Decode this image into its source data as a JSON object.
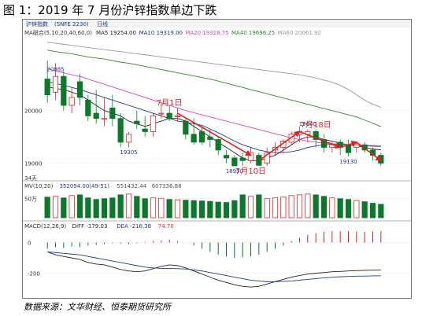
{
  "title": "图 1：2019 年 7 月份沪锌指数单边下跌",
  "source": "数据来源：文华财经、恒泰期货研究所",
  "chart_data": {
    "type": "candlestick",
    "tabs": [
      "沪锌指数",
      "(SNFE 2230)",
      "日线"
    ],
    "colors": {
      "up": "#e02020",
      "down": "#0a7a2a",
      "bg": "#ffffff",
      "ann": "#e02020",
      "ma_label": "#1f3b8a"
    },
    "price_panel": {
      "ylim": [
        18800,
        21400
      ],
      "yticks": [
        19000,
        20000
      ],
      "ma_legend": [
        {
          "label": "MA磁合(5,10,20,40,60,0)",
          "color": "#333333"
        },
        {
          "label": "MA5 19254.00",
          "color": "#222222"
        },
        {
          "label": "MA10 19319.00",
          "color": "#1f3b8a"
        },
        {
          "label": "MA20 19328.75",
          "color": "#e040c0"
        },
        {
          "label": "MA40 19696.25",
          "color": "#2e8b2e"
        },
        {
          "label": "MA60 20061.92",
          "color": "#999999"
        }
      ],
      "candles": [
        {
          "o": 20600,
          "h": 20950,
          "c": 20300,
          "l": 20150
        },
        {
          "o": 20350,
          "h": 20900,
          "c": 20650,
          "l": 20200
        },
        {
          "o": 20650,
          "h": 20750,
          "c": 20100,
          "l": 20000
        },
        {
          "o": 20100,
          "h": 20450,
          "c": 20250,
          "l": 19950
        },
        {
          "o": 20550,
          "h": 20700,
          "c": 20250,
          "l": 20100
        },
        {
          "o": 20200,
          "h": 20300,
          "c": 19900,
          "l": 19800
        },
        {
          "o": 19950,
          "h": 20400,
          "c": 19850,
          "l": 19750
        },
        {
          "o": 19850,
          "h": 20250,
          "c": 19850,
          "l": 19700
        },
        {
          "o": 20050,
          "h": 20300,
          "c": 19850,
          "l": 19700
        },
        {
          "o": 19850,
          "h": 19950,
          "c": 19400,
          "l": 19305
        },
        {
          "o": 19400,
          "h": 19600,
          "c": 19550,
          "l": 19305
        },
        {
          "o": 19800,
          "h": 20000,
          "c": 19750,
          "l": 19650
        },
        {
          "o": 19650,
          "h": 19900,
          "c": 19600,
          "l": 19500
        },
        {
          "o": 19600,
          "h": 19950,
          "c": 19900,
          "l": 19500
        },
        {
          "o": 19950,
          "h": 20150,
          "c": 19950,
          "l": 19850
        },
        {
          "o": 19950,
          "h": 20100,
          "c": 19850,
          "l": 19800
        },
        {
          "o": 19900,
          "h": 20050,
          "c": 19900,
          "l": 19800
        },
        {
          "o": 19800,
          "h": 19850,
          "c": 19550,
          "l": 19450
        },
        {
          "o": 19550,
          "h": 19850,
          "c": 19400,
          "l": 19350
        },
        {
          "o": 19600,
          "h": 19700,
          "c": 19400,
          "l": 19350
        },
        {
          "o": 19500,
          "h": 19650,
          "c": 19450,
          "l": 19300
        },
        {
          "o": 19450,
          "h": 19500,
          "c": 19250,
          "l": 19150
        },
        {
          "o": 19150,
          "h": 19250,
          "c": 19100,
          "l": 19000
        },
        {
          "o": 19100,
          "h": 19150,
          "c": 18950,
          "l": 18950
        },
        {
          "o": 19100,
          "h": 19200,
          "c": 19050,
          "l": 18950
        },
        {
          "o": 19050,
          "h": 19300,
          "c": 19200,
          "l": 19000
        },
        {
          "o": 19150,
          "h": 19200,
          "c": 18960,
          "l": 18950
        },
        {
          "o": 19000,
          "h": 19300,
          "c": 19200,
          "l": 18950
        },
        {
          "o": 19250,
          "h": 19400,
          "c": 19300,
          "l": 19150
        },
        {
          "o": 19300,
          "h": 19450,
          "c": 19420,
          "l": 19200
        },
        {
          "o": 19400,
          "h": 19600,
          "c": 19550,
          "l": 19350
        },
        {
          "o": 19550,
          "h": 19700,
          "c": 19600,
          "l": 19400
        },
        {
          "o": 19550,
          "h": 19640,
          "c": 19600,
          "l": 19400
        },
        {
          "o": 19600,
          "h": 19640,
          "c": 19450,
          "l": 19300
        },
        {
          "o": 19450,
          "h": 19550,
          "c": 19300,
          "l": 19200
        },
        {
          "o": 19300,
          "h": 19400,
          "c": 19350,
          "l": 19200
        },
        {
          "o": 19400,
          "h": 19450,
          "c": 19300,
          "l": 19150
        },
        {
          "o": 19350,
          "h": 19450,
          "c": 19200,
          "l": 19130
        },
        {
          "o": 19300,
          "h": 19400,
          "c": 19350,
          "l": 19200
        },
        {
          "o": 19350,
          "h": 19400,
          "c": 19250,
          "l": 19200
        },
        {
          "o": 19250,
          "h": 19300,
          "c": 19150,
          "l": 19050
        },
        {
          "o": 19150,
          "h": 19200,
          "c": 19000,
          "l": 18950
        }
      ],
      "ma_lines": {
        "MA5": [
          20450,
          20420,
          20400,
          20350,
          20300,
          20200,
          20100,
          20000,
          19950,
          19900,
          19800,
          19750,
          19700,
          19750,
          19800,
          19850,
          19850,
          19800,
          19700,
          19600,
          19500,
          19400,
          19300,
          19200,
          19100,
          19050,
          19050,
          19100,
          19150,
          19250,
          19350,
          19450,
          19500,
          19500,
          19450,
          19420,
          19380,
          19350,
          19330,
          19300,
          19270,
          19254
        ],
        "MA10": [
          20550,
          20520,
          20480,
          20440,
          20400,
          20350,
          20300,
          20250,
          20200,
          20150,
          20100,
          20050,
          20000,
          19950,
          19900,
          19850,
          19800,
          19780,
          19750,
          19720,
          19650,
          19580,
          19500,
          19420,
          19350,
          19300,
          19250,
          19220,
          19200,
          19200,
          19220,
          19250,
          19300,
          19330,
          19350,
          19360,
          19360,
          19350,
          19340,
          19330,
          19325,
          19319
        ],
        "MA20": [
          20800,
          20750,
          20720,
          20680,
          20650,
          20600,
          20550,
          20500,
          20450,
          20400,
          20350,
          20300,
          20250,
          20200,
          20150,
          20100,
          20050,
          20000,
          19960,
          19920,
          19880,
          19840,
          19800,
          19760,
          19720,
          19680,
          19640,
          19600,
          19560,
          19520,
          19480,
          19450,
          19420,
          19400,
          19380,
          19370,
          19360,
          19350,
          19345,
          19340,
          19335,
          19329
        ],
        "MA40": [
          21150,
          21120,
          21100,
          21080,
          21050,
          21020,
          21000,
          20980,
          20950,
          20920,
          20900,
          20870,
          20840,
          20810,
          20780,
          20750,
          20720,
          20690,
          20660,
          20630,
          20600,
          20560,
          20520,
          20480,
          20440,
          20400,
          20360,
          20320,
          20280,
          20240,
          20200,
          20160,
          20120,
          20080,
          20040,
          20000,
          19960,
          19920,
          19880,
          19820,
          19760,
          19696
        ],
        "MA60": [
          21300,
          21280,
          21260,
          21240,
          21220,
          21200,
          21180,
          21160,
          21140,
          21120,
          21100,
          21080,
          21060,
          21040,
          21020,
          21000,
          20980,
          20960,
          20940,
          20920,
          20900,
          20880,
          20860,
          20840,
          20820,
          20800,
          20780,
          20760,
          20740,
          20720,
          20700,
          20680,
          20650,
          20620,
          20580,
          20540,
          20480,
          20400,
          20300,
          20200,
          20120,
          20062
        ]
      },
      "labels": [
        {
          "text": "20885",
          "i": 1,
          "v": 20885,
          "pos": "below"
        },
        {
          "text": "19305",
          "i": 10,
          "v": 19305,
          "pos": "below"
        },
        {
          "text": "18950",
          "i": 23,
          "v": 18950,
          "pos": "below"
        },
        {
          "text": "19640",
          "i": 32,
          "v": 19640,
          "pos": "above"
        },
        {
          "text": "19130",
          "i": 37,
          "v": 19130,
          "pos": "below"
        }
      ],
      "annotations": [
        {
          "text": "7月1日",
          "i": 15,
          "v": 20100
        },
        {
          "text": "7月10日",
          "i": 25,
          "v": 18800
        },
        {
          "text": "7月18日",
          "i": 33,
          "v": 19680
        }
      ],
      "arrows": [
        {
          "from_i": 16,
          "from_v": 19950,
          "to_i": 25,
          "to_v": 19150
        },
        {
          "from_i": 26,
          "from_v": 19050,
          "to_i": 31,
          "to_v": 19600
        },
        {
          "from_i": 31,
          "from_v": 19600,
          "to_i": 36,
          "to_v": 19300
        },
        {
          "from_i": 36,
          "from_v": 19300,
          "to_i": 38,
          "to_v": 19400
        },
        {
          "from_i": 38,
          "from_v": 19400,
          "to_i": 41,
          "to_v": 19050
        }
      ],
      "period_label": "34天"
    },
    "volume_panel": {
      "legend": [
        "MV(10,20)",
        "352094.00(49:51)",
        "551432.44",
        "607336.88"
      ],
      "ytick": "50万",
      "ylim": [
        0,
        700000
      ],
      "values": [
        540000,
        560000,
        520000,
        580000,
        600000,
        520000,
        480000,
        500000,
        520000,
        600000,
        620000,
        560000,
        500000,
        520000,
        510000,
        480000,
        470000,
        460000,
        450000,
        440000,
        430000,
        410000,
        400000,
        450000,
        600000,
        560000,
        600000,
        500000,
        520000,
        540000,
        580000,
        600000,
        620000,
        600000,
        560000,
        520000,
        500000,
        480000,
        450000,
        420000,
        380000,
        352094
      ],
      "up": [
        false,
        true,
        false,
        true,
        false,
        false,
        false,
        false,
        false,
        false,
        true,
        false,
        false,
        true,
        true,
        false,
        true,
        false,
        false,
        false,
        false,
        false,
        false,
        false,
        false,
        true,
        false,
        true,
        true,
        true,
        true,
        true,
        true,
        false,
        false,
        true,
        false,
        false,
        true,
        false,
        false,
        false
      ]
    },
    "macd_panel": {
      "legend": [
        "MACD(12,26,9)",
        "DIFF -179.03",
        "DEA -216.38",
        "74.70"
      ],
      "yticks": [
        0,
        -200
      ],
      "ylim": [
        -330,
        80
      ],
      "hist": [
        -40,
        -30,
        -35,
        -25,
        -30,
        -20,
        -15,
        -10,
        -5,
        -8,
        -10,
        -5,
        5,
        10,
        15,
        20,
        10,
        0,
        -20,
        -40,
        -60,
        -80,
        -90,
        -100,
        -95,
        -90,
        -80,
        -60,
        -40,
        -20,
        10,
        30,
        50,
        60,
        70,
        75,
        75,
        74,
        72,
        70,
        72,
        74.7
      ],
      "diff": [
        -60,
        -80,
        -90,
        -100,
        -110,
        -130,
        -140,
        -145,
        -160,
        -175,
        -185,
        -190,
        -185,
        -170,
        -155,
        -145,
        -150,
        -165,
        -185,
        -205,
        -225,
        -245,
        -260,
        -275,
        -285,
        -290,
        -285,
        -270,
        -255,
        -240,
        -225,
        -215,
        -205,
        -200,
        -195,
        -190,
        -188,
        -185,
        -183,
        -181,
        -180,
        -179.03
      ],
      "dea": [
        -60,
        -65,
        -70,
        -75,
        -80,
        -90,
        -100,
        -110,
        -120,
        -130,
        -140,
        -150,
        -160,
        -165,
        -168,
        -168,
        -170,
        -172,
        -178,
        -185,
        -195,
        -205,
        -215,
        -225,
        -235,
        -245,
        -250,
        -255,
        -255,
        -253,
        -250,
        -245,
        -240,
        -235,
        -230,
        -226,
        -223,
        -221,
        -219,
        -218,
        -217,
        -216.38
      ]
    }
  }
}
